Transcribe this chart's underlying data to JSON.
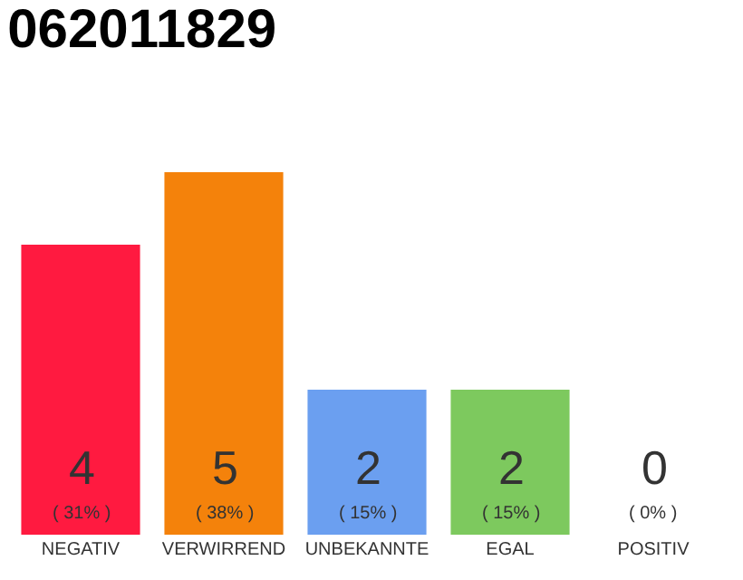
{
  "chart_data": {
    "type": "bar",
    "title": "062011829",
    "categories": [
      "NEGATIV",
      "VERWIRREND",
      "UNBEKANNTE",
      "EGAL",
      "POSITIV"
    ],
    "values": [
      4,
      5,
      2,
      2,
      0
    ],
    "colors": [
      "#ff1a40",
      "#f4820b",
      "#6b9ff0",
      "#7dc95e",
      "#bbbbbb"
    ],
    "value_labels": [
      "4\n( 31% )",
      "5\n( 38% )",
      "2\n( 15% )",
      "2\n( 15% )",
      "0\n( 0% )"
    ],
    "legend": false
  }
}
